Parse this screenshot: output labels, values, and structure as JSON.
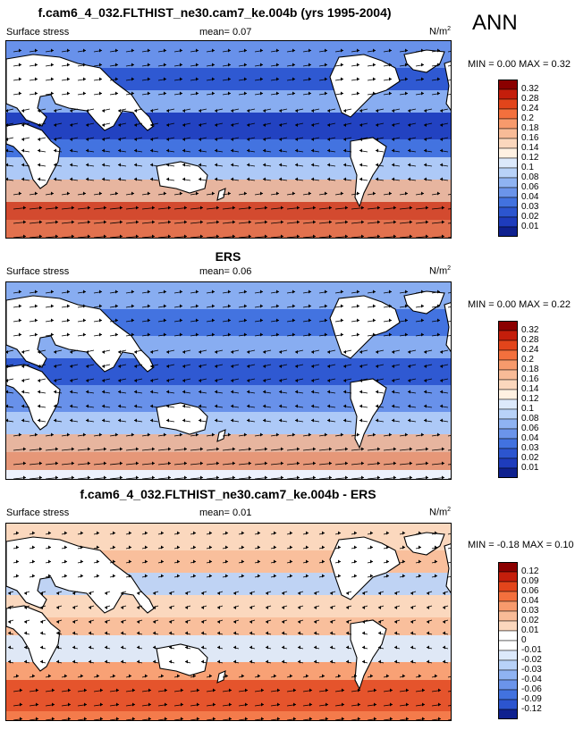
{
  "header": {
    "title": "f.cam6_4_032.FLTHIST_ne30.cam7_ke.004b (yrs 1995-2004)",
    "season": "ANN"
  },
  "panels": [
    {
      "title": "",
      "left_label": "Surface stress",
      "mean_label": "mean=  0.07",
      "units": "N/m",
      "units_sup": "2",
      "minmax": "MIN =  0.00 MAX =  0.32",
      "colorbar_levels": [
        "0.32",
        "0.28",
        "0.24",
        "0.2",
        "0.18",
        "0.16",
        "0.14",
        "0.12",
        "0.1",
        "0.08",
        "0.06",
        "0.04",
        "0.03",
        "0.02",
        "0.01"
      ],
      "colorbar_colors": [
        "#8b0000",
        "#c41e0b",
        "#e2451b",
        "#f3703d",
        "#f79a6c",
        "#f8bb97",
        "#fbd7bd",
        "#fff1e2",
        "#dce9fb",
        "#b8d2f8",
        "#8fb3f2",
        "#6b94ea",
        "#4272df",
        "#2c55cf",
        "#1e3cbc",
        "#0f218f"
      ]
    },
    {
      "title": "ERS",
      "left_label": "Surface stress",
      "mean_label": "mean=  0.06",
      "units": "N/m",
      "units_sup": "2",
      "minmax": "MIN =  0.00 MAX =  0.22",
      "colorbar_levels": [
        "0.32",
        "0.28",
        "0.24",
        "0.2",
        "0.18",
        "0.16",
        "0.14",
        "0.12",
        "0.1",
        "0.08",
        "0.06",
        "0.04",
        "0.03",
        "0.02",
        "0.01"
      ],
      "colorbar_colors": [
        "#8b0000",
        "#c41e0b",
        "#e2451b",
        "#f3703d",
        "#f79a6c",
        "#f8bb97",
        "#fbd7bd",
        "#fff1e2",
        "#dce9fb",
        "#b8d2f8",
        "#8fb3f2",
        "#6b94ea",
        "#4272df",
        "#2c55cf",
        "#1e3cbc",
        "#0f218f"
      ]
    },
    {
      "title": "f.cam6_4_032.FLTHIST_ne30.cam7_ke.004b - ERS",
      "left_label": "Surface stress",
      "mean_label": "mean=  0.01",
      "units": "N/m",
      "units_sup": "2",
      "minmax": "MIN = -0.18 MAX =  0.10",
      "colorbar_levels": [
        "0.12",
        "0.09",
        "0.06",
        "0.04",
        "0.03",
        "0.02",
        "0.01",
        "0",
        "-0.01",
        "-0.02",
        "-0.03",
        "-0.04",
        "-0.06",
        "-0.09",
        "-0.12"
      ],
      "colorbar_colors": [
        "#8b0000",
        "#c41e0b",
        "#e2451b",
        "#f3703d",
        "#f79a6c",
        "#f8bb97",
        "#fbd7bd",
        "#ffffff",
        "#ffffff",
        "#dce9fb",
        "#b8d2f8",
        "#8fb3f2",
        "#6b94ea",
        "#4272df",
        "#2c55cf",
        "#0f218f"
      ]
    }
  ],
  "chart_data": [
    {
      "type": "heatmap",
      "title": "f.cam6_4_032.FLTHIST_ne30.cam7_ke.004b (yrs 1995-2004)",
      "variable": "Surface stress",
      "units": "N/m2",
      "mean": 0.07,
      "min": 0.0,
      "max": 0.32,
      "colormap": "blue-white-red",
      "vectors": true
    },
    {
      "type": "heatmap",
      "title": "ERS",
      "variable": "Surface stress",
      "units": "N/m2",
      "mean": 0.06,
      "min": 0.0,
      "max": 0.22,
      "colormap": "blue-white-red",
      "vectors": true
    },
    {
      "type": "heatmap",
      "title": "f.cam6_4_032.FLTHIST_ne30.cam7_ke.004b - ERS",
      "variable": "Surface stress",
      "units": "N/m2",
      "mean": 0.01,
      "min": -0.18,
      "max": 0.1,
      "colormap": "blue-white-red",
      "vectors": true
    }
  ]
}
